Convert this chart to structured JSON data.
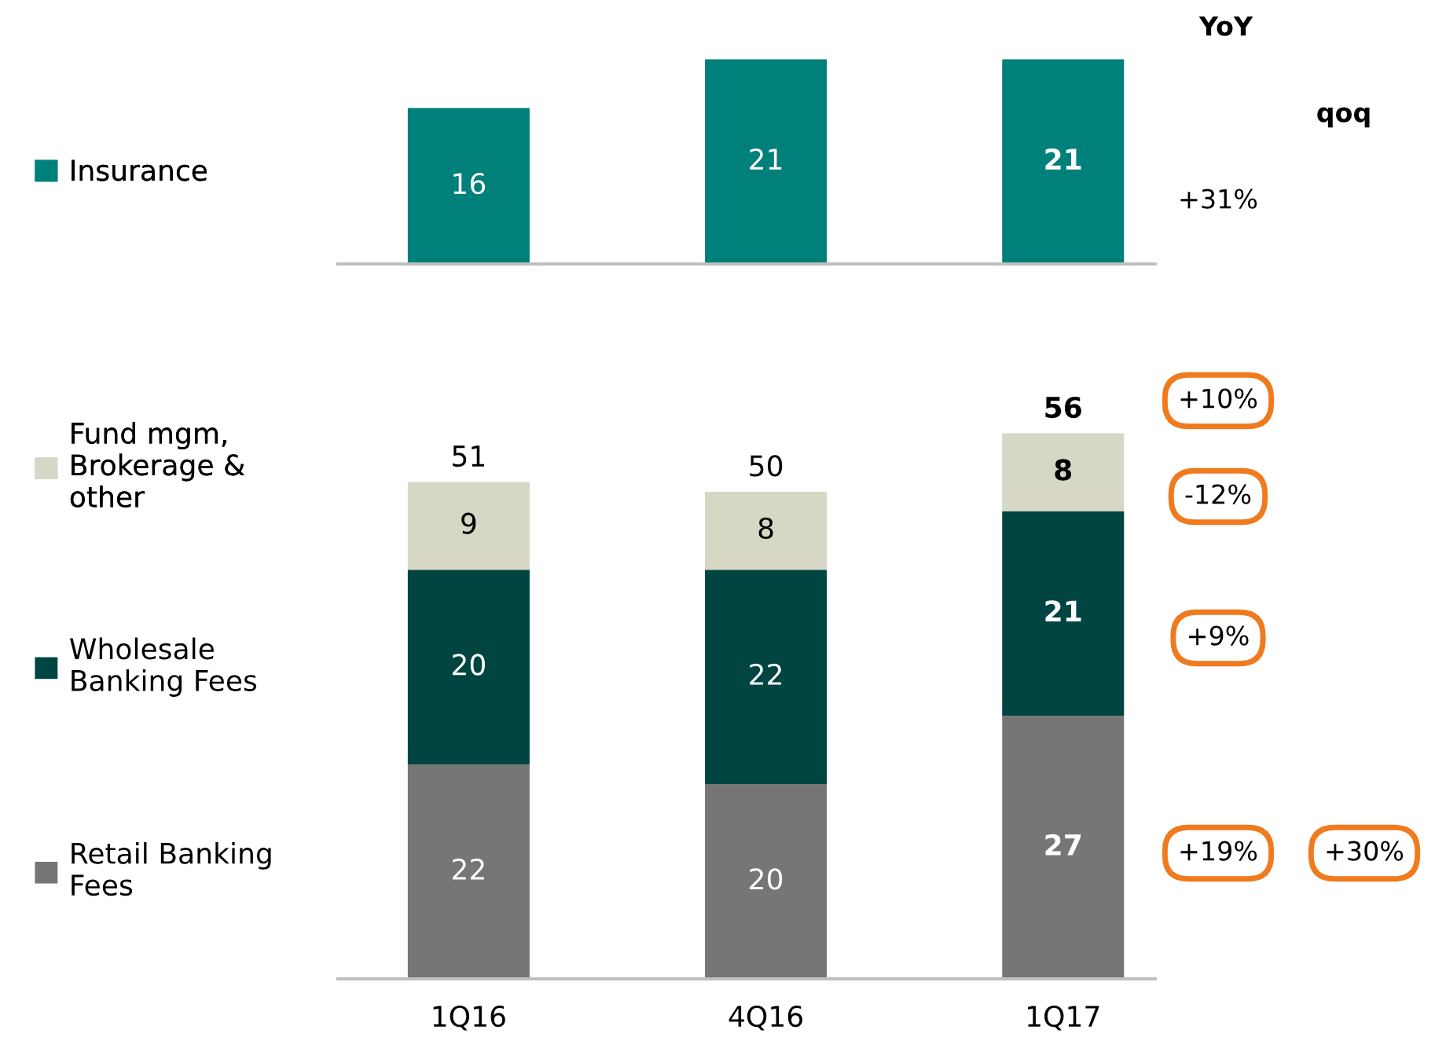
{
  "chart_data": [
    {
      "type": "bar",
      "categories": [
        null,
        null,
        null
      ],
      "data_labels": true,
      "legend": "left",
      "series": [
        {
          "name": "Insurance",
          "color": "#00807a",
          "values": [
            16,
            21,
            21
          ]
        }
      ],
      "annotations": [
        "YoY",
        "qoq",
        "+31%"
      ]
    },
    {
      "type": "bar",
      "stacked": true,
      "categories": [
        "1Q16",
        "4Q16",
        "1Q17"
      ],
      "data_labels": true,
      "legend": "left",
      "totals": [
        "51",
        "50",
        "56"
      ],
      "series": [
        {
          "name": "Retail Banking\nFees",
          "color": "#767676",
          "values": [
            22,
            20,
            27
          ]
        },
        {
          "name": "Wholesale\nBanking Fees",
          "color": "#004541",
          "values": [
            20,
            22,
            21
          ]
        },
        {
          "name": "Fund mgm,\nBrokerage &\nother",
          "color": "#d7d7c5",
          "values": [
            9,
            8,
            8
          ]
        }
      ],
      "annotations": [
        "+10%",
        "-12%",
        "+9%",
        "+19%",
        "+30%"
      ]
    }
  ]
}
